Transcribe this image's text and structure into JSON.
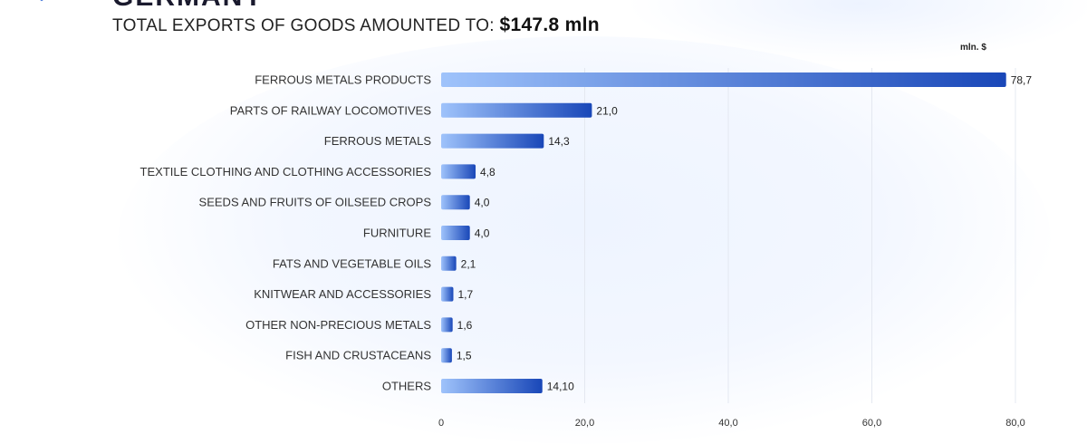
{
  "header": {
    "title": "GERMANY",
    "subtitle_prefix": "TOTAL EXPORTS OF GOODS AMOUNTED TO:",
    "subtitle_amount": "$147.8 mln"
  },
  "colors": {
    "bar_start": "#9fc3fb",
    "bar_end": "#1947b8",
    "grid": "#e4e8f0",
    "label": "#333333"
  },
  "chart_data": {
    "type": "bar",
    "orientation": "horizontal",
    "unit_label": "mln. $",
    "categories": [
      "FERROUS METALS PRODUCTS",
      "PARTS OF RAILWAY LOCOMOTIVES",
      "FERROUS METALS",
      "TEXTILE CLOTHING AND CLOTHING ACCESSORIES",
      "SEEDS AND FRUITS OF OILSEED CROPS",
      "FURNITURE",
      "FATS AND VEGETABLE OILS",
      "KNITWEAR AND ACCESSORIES",
      "OTHER NON-PRECIOUS METALS",
      "FISH AND CRUSTACEANS",
      "OTHERS"
    ],
    "values": [
      78.7,
      21.0,
      14.3,
      4.8,
      4.0,
      4.0,
      2.1,
      1.7,
      1.6,
      1.5,
      14.1
    ],
    "value_labels": [
      "78,7",
      "21,0",
      "14,3",
      "4,8",
      "4,0",
      "4,0",
      "2,1",
      "1,7",
      "1,6",
      "1,5",
      "14,10"
    ],
    "xlim": [
      0,
      80
    ],
    "xticks": [
      0,
      20,
      40,
      60,
      80
    ],
    "xtick_labels": [
      "0",
      "20,0",
      "40,0",
      "60,0",
      "80,0"
    ],
    "grid": "vertical"
  }
}
